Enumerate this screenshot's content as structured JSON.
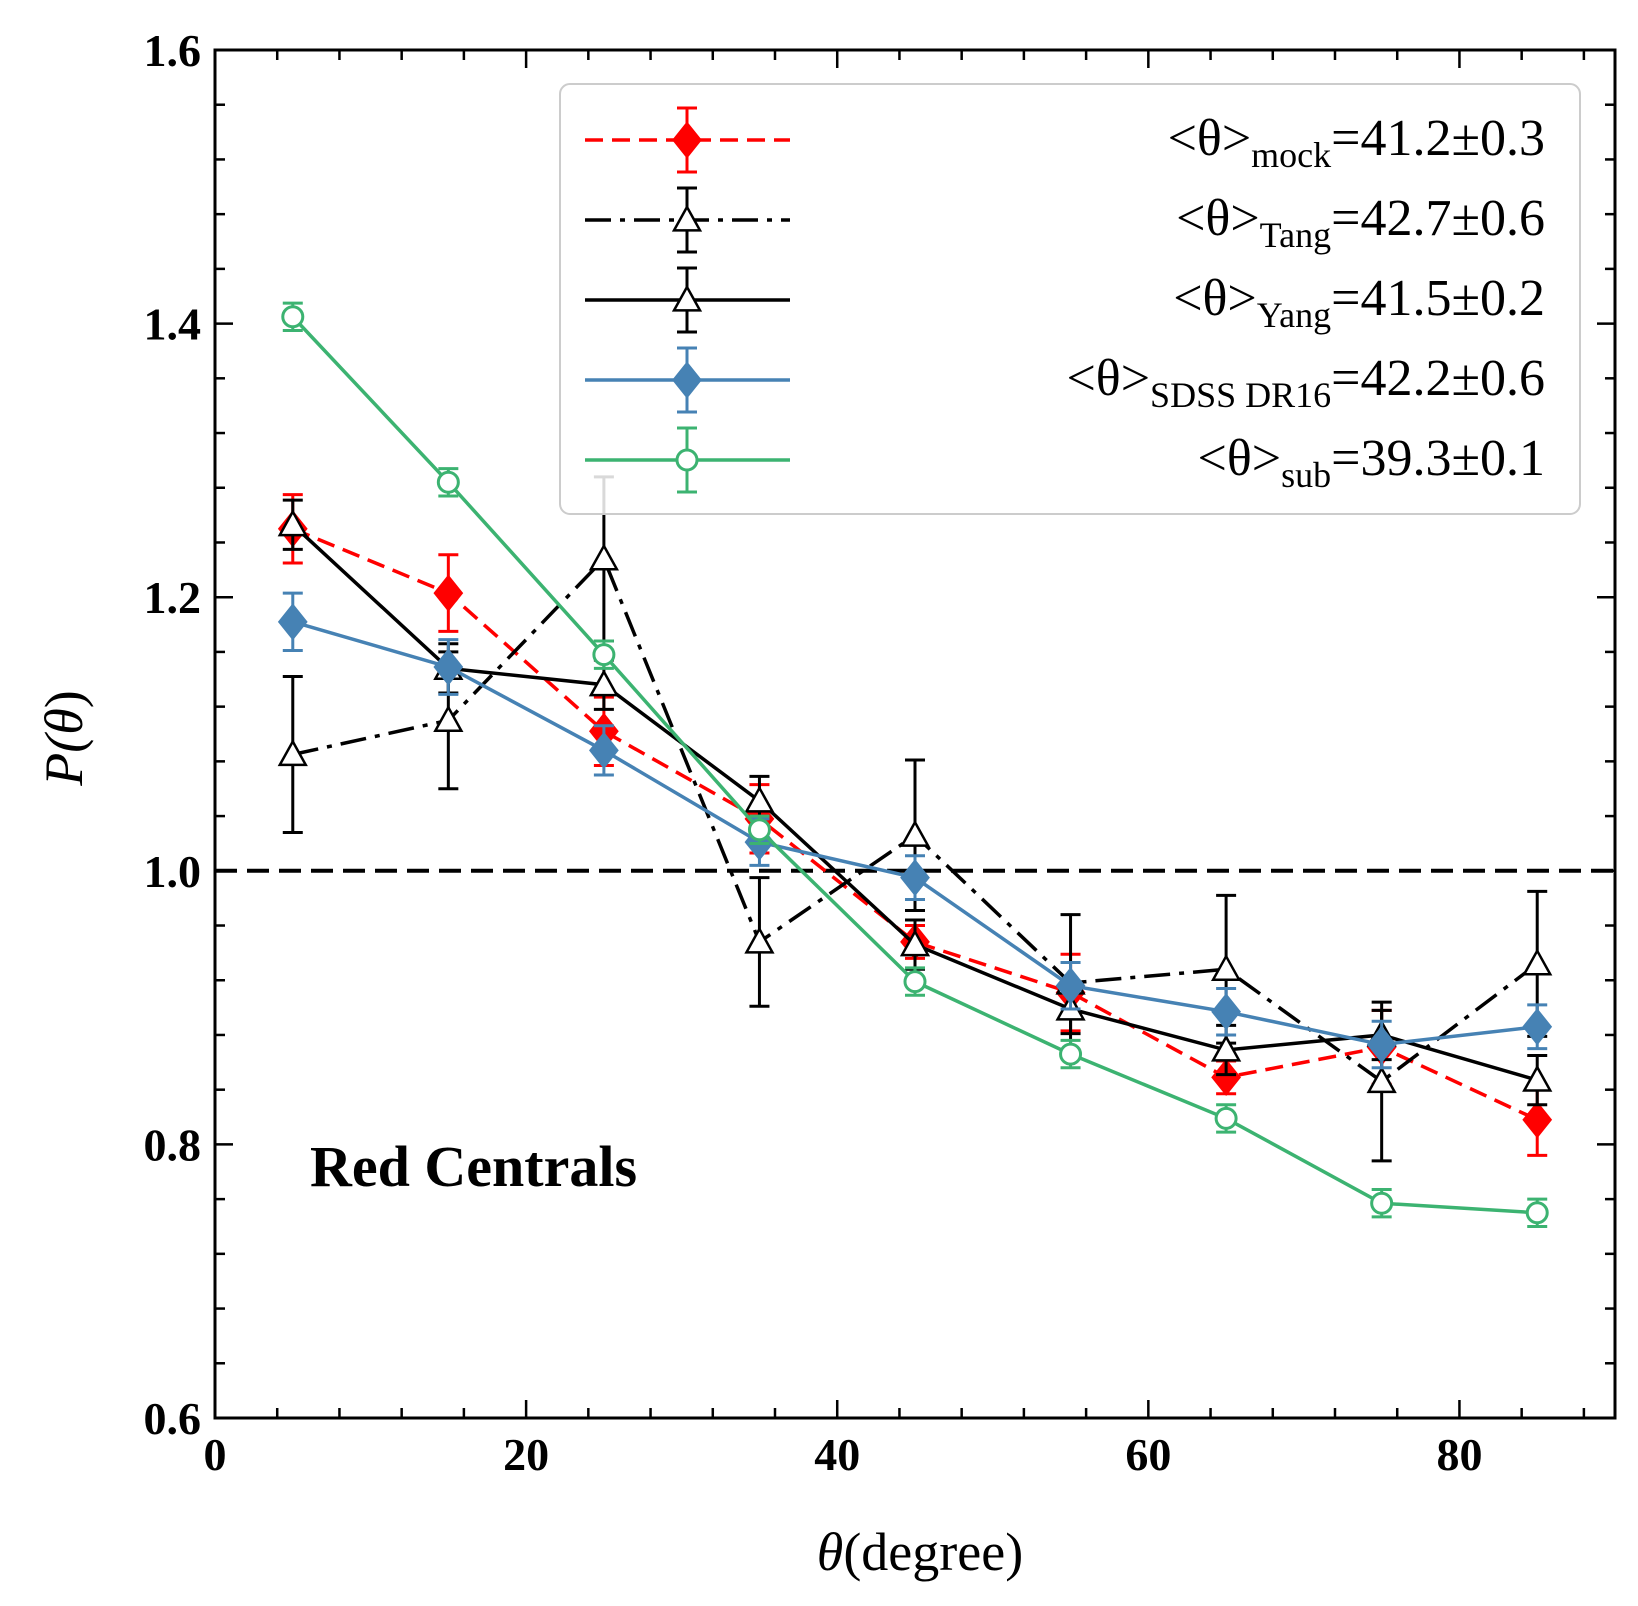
{
  "chart_data": {
    "type": "line",
    "xlabel": "(degree)",
    "xlabel_symbol": "θ",
    "ylabel_func": "P(",
    "ylabel_symbol": "θ",
    "ylabel_close": ")",
    "xlim": [
      0,
      90
    ],
    "ylim": [
      0.6,
      1.6
    ],
    "xticks": [
      0,
      20,
      40,
      60,
      80
    ],
    "xtick_labels": [
      "0",
      "20",
      "40",
      "60",
      "80"
    ],
    "yticks": [
      0.6,
      0.8,
      1.0,
      1.2,
      1.4,
      1.6
    ],
    "ytick_labels": [
      "0.6",
      "0.8",
      "1.0",
      "1.2",
      "1.4",
      "1.6"
    ],
    "reference_line": 1.0,
    "annotation": "Red Centrals",
    "legend_position": "top-right",
    "x": [
      5,
      15,
      25,
      35,
      45,
      55,
      65,
      75,
      85
    ],
    "series": [
      {
        "name": "mock",
        "legend_prefix": "<θ>",
        "legend_sub": "mock",
        "legend_value": "=41.2±0.3",
        "color": "#ff0000",
        "linestyle": "dashed",
        "marker": "diamond-filled",
        "values": [
          1.25,
          1.203,
          1.102,
          1.038,
          0.948,
          0.911,
          0.849,
          0.871,
          0.818
        ],
        "errors": [
          0.025,
          0.028,
          0.025,
          0.025,
          0.012,
          0.028,
          0.012,
          0.027,
          0.026
        ]
      },
      {
        "name": "Tang",
        "legend_prefix": "<θ>",
        "legend_sub": "Tang",
        "legend_value": "=42.7±0.6",
        "color": "#000000",
        "linestyle": "dashdot",
        "marker": "triangle-open",
        "values": [
          1.085,
          1.11,
          1.228,
          0.948,
          1.026,
          0.918,
          0.928,
          0.846,
          0.932
        ],
        "errors": [
          0.057,
          0.05,
          0.06,
          0.047,
          0.055,
          0.05,
          0.054,
          0.058,
          0.053
        ]
      },
      {
        "name": "Yang",
        "legend_prefix": "<θ>",
        "legend_sub": "Yang",
        "legend_value": "=41.5±0.2",
        "color": "#000000",
        "linestyle": "solid",
        "marker": "triangle-open",
        "values": [
          1.253,
          1.148,
          1.136,
          1.051,
          0.946,
          0.899,
          0.869,
          0.88,
          0.847
        ],
        "errors": [
          0.018,
          0.018,
          0.018,
          0.018,
          0.018,
          0.018,
          0.018,
          0.018,
          0.018
        ]
      },
      {
        "name": "SDSS DR16",
        "legend_prefix": "<θ>",
        "legend_sub": "SDSS DR16",
        "legend_value": "=42.2±0.6",
        "color": "#4682b4",
        "linestyle": "solid",
        "marker": "diamond-filled",
        "values": [
          1.182,
          1.149,
          1.088,
          1.021,
          0.995,
          0.916,
          0.897,
          0.873,
          0.886
        ],
        "errors": [
          0.021,
          0.02,
          0.018,
          0.017,
          0.016,
          0.017,
          0.017,
          0.017,
          0.016
        ]
      },
      {
        "name": "sub",
        "legend_prefix": "<θ>",
        "legend_sub": "sub",
        "legend_value": "=39.3±0.1",
        "color": "#3cb371",
        "linestyle": "solid",
        "marker": "circle-open",
        "values": [
          1.405,
          1.284,
          1.158,
          1.03,
          0.919,
          0.866,
          0.819,
          0.757,
          0.75
        ],
        "errors": [
          0.01,
          0.01,
          0.01,
          0.01,
          0.01,
          0.01,
          0.01,
          0.01,
          0.01
        ]
      }
    ]
  }
}
